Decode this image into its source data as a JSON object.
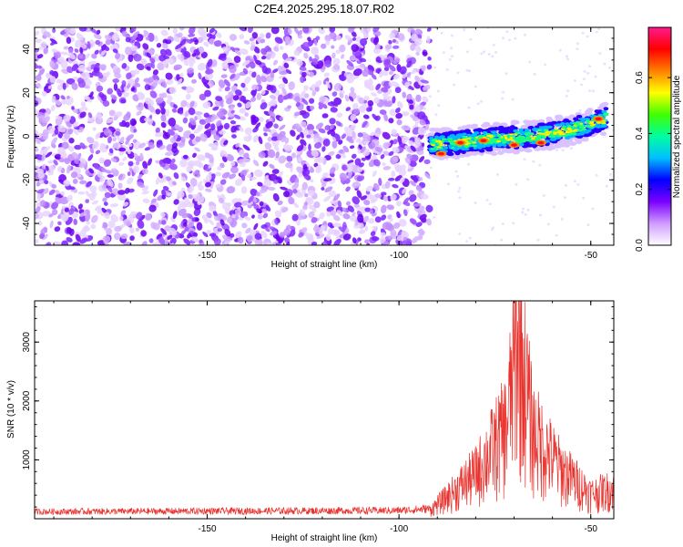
{
  "title": "C2E4.2025.295.18.07.R02",
  "colors": {
    "snr_line": "#e8322d",
    "frame": "#000000",
    "background": "#ffffff",
    "colorbar_stops": [
      "#ffffff",
      "#cf9cff",
      "#7b00ff",
      "#0000ff",
      "#00bfff",
      "#00ffa0",
      "#40ff00",
      "#ffff00",
      "#ff8000",
      "#ff0000",
      "#ff1a8c"
    ]
  },
  "chart_data": [
    {
      "type": "heatmap",
      "name": "spectrogram",
      "xlabel": "Height of straight line (km)",
      "ylabel": "Frequency (Hz)",
      "xlim": [
        -195,
        -44
      ],
      "ylim": [
        -50,
        50
      ],
      "xticks": [
        -150,
        -100,
        -50
      ],
      "yticks": [
        -40,
        -20,
        0,
        20,
        40
      ],
      "noise_region_x": [
        -195,
        -92
      ],
      "signal_track": [
        [
          -92,
          -4
        ],
        [
          -85,
          -3
        ],
        [
          -75,
          -1
        ],
        [
          -65,
          0
        ],
        [
          -55,
          3
        ],
        [
          -46,
          8
        ]
      ],
      "hotspots": [
        [
          -89,
          -8
        ],
        [
          -84,
          -3
        ],
        [
          -78,
          -2
        ],
        [
          -70,
          -4
        ],
        [
          -63,
          -3
        ],
        [
          -48,
          8
        ]
      ],
      "colorbar": {
        "label": "Normalized spectral amplitude",
        "range": [
          0,
          0.78
        ],
        "ticks": [
          "0.0",
          "0.2",
          "0.4",
          "0.6"
        ],
        "tick_values": [
          0,
          0.2,
          0.4,
          0.6
        ]
      }
    },
    {
      "type": "line",
      "name": "snr",
      "xlabel": "Height of straight line (km)",
      "ylabel": "SNR (10 * v/v)",
      "xlim": [
        -195,
        -44
      ],
      "ylim": [
        0,
        3700
      ],
      "xticks": [
        -150,
        -100,
        -50
      ],
      "yticks": [
        1000,
        2000,
        3000
      ],
      "series_description_points": [
        [
          -195,
          120
        ],
        [
          -100,
          140
        ],
        [
          -92,
          170
        ],
        [
          -88,
          400
        ],
        [
          -80,
          900
        ],
        [
          -72,
          1800
        ],
        [
          -69,
          3600
        ],
        [
          -65,
          1700
        ],
        [
          -58,
          1000
        ],
        [
          -50,
          500
        ],
        [
          -44,
          600
        ]
      ]
    }
  ]
}
